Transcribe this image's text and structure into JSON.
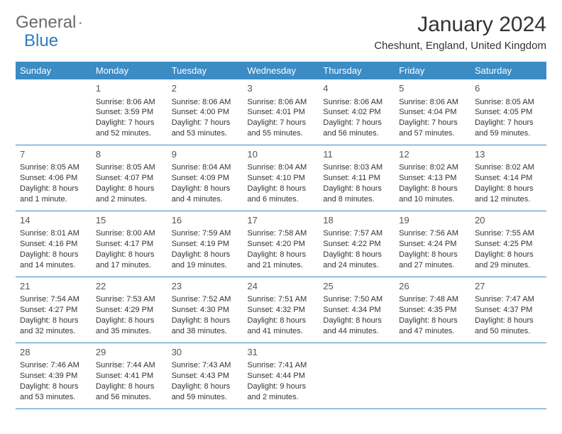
{
  "logo": {
    "general": "General",
    "blue": "Blue"
  },
  "title": "January 2024",
  "location": "Cheshunt, England, United Kingdom",
  "colors": {
    "header_bg": "#3b8bc5",
    "header_text": "#ffffff",
    "border": "#3b8bc5",
    "logo_gray": "#6a6a6a",
    "logo_blue": "#2f7bbf",
    "text": "#333333",
    "background": "#ffffff"
  },
  "day_headers": [
    "Sunday",
    "Monday",
    "Tuesday",
    "Wednesday",
    "Thursday",
    "Friday",
    "Saturday"
  ],
  "layout": {
    "first_day_column": 1,
    "fontsize_body": 11,
    "fontsize_header": 13,
    "fontsize_title": 30
  },
  "days": {
    "1": {
      "sunrise": "8:06 AM",
      "sunset": "3:59 PM",
      "daylight": "7 hours and 52 minutes."
    },
    "2": {
      "sunrise": "8:06 AM",
      "sunset": "4:00 PM",
      "daylight": "7 hours and 53 minutes."
    },
    "3": {
      "sunrise": "8:06 AM",
      "sunset": "4:01 PM",
      "daylight": "7 hours and 55 minutes."
    },
    "4": {
      "sunrise": "8:06 AM",
      "sunset": "4:02 PM",
      "daylight": "7 hours and 56 minutes."
    },
    "5": {
      "sunrise": "8:06 AM",
      "sunset": "4:04 PM",
      "daylight": "7 hours and 57 minutes."
    },
    "6": {
      "sunrise": "8:05 AM",
      "sunset": "4:05 PM",
      "daylight": "7 hours and 59 minutes."
    },
    "7": {
      "sunrise": "8:05 AM",
      "sunset": "4:06 PM",
      "daylight": "8 hours and 1 minute."
    },
    "8": {
      "sunrise": "8:05 AM",
      "sunset": "4:07 PM",
      "daylight": "8 hours and 2 minutes."
    },
    "9": {
      "sunrise": "8:04 AM",
      "sunset": "4:09 PM",
      "daylight": "8 hours and 4 minutes."
    },
    "10": {
      "sunrise": "8:04 AM",
      "sunset": "4:10 PM",
      "daylight": "8 hours and 6 minutes."
    },
    "11": {
      "sunrise": "8:03 AM",
      "sunset": "4:11 PM",
      "daylight": "8 hours and 8 minutes."
    },
    "12": {
      "sunrise": "8:02 AM",
      "sunset": "4:13 PM",
      "daylight": "8 hours and 10 minutes."
    },
    "13": {
      "sunrise": "8:02 AM",
      "sunset": "4:14 PM",
      "daylight": "8 hours and 12 minutes."
    },
    "14": {
      "sunrise": "8:01 AM",
      "sunset": "4:16 PM",
      "daylight": "8 hours and 14 minutes."
    },
    "15": {
      "sunrise": "8:00 AM",
      "sunset": "4:17 PM",
      "daylight": "8 hours and 17 minutes."
    },
    "16": {
      "sunrise": "7:59 AM",
      "sunset": "4:19 PM",
      "daylight": "8 hours and 19 minutes."
    },
    "17": {
      "sunrise": "7:58 AM",
      "sunset": "4:20 PM",
      "daylight": "8 hours and 21 minutes."
    },
    "18": {
      "sunrise": "7:57 AM",
      "sunset": "4:22 PM",
      "daylight": "8 hours and 24 minutes."
    },
    "19": {
      "sunrise": "7:56 AM",
      "sunset": "4:24 PM",
      "daylight": "8 hours and 27 minutes."
    },
    "20": {
      "sunrise": "7:55 AM",
      "sunset": "4:25 PM",
      "daylight": "8 hours and 29 minutes."
    },
    "21": {
      "sunrise": "7:54 AM",
      "sunset": "4:27 PM",
      "daylight": "8 hours and 32 minutes."
    },
    "22": {
      "sunrise": "7:53 AM",
      "sunset": "4:29 PM",
      "daylight": "8 hours and 35 minutes."
    },
    "23": {
      "sunrise": "7:52 AM",
      "sunset": "4:30 PM",
      "daylight": "8 hours and 38 minutes."
    },
    "24": {
      "sunrise": "7:51 AM",
      "sunset": "4:32 PM",
      "daylight": "8 hours and 41 minutes."
    },
    "25": {
      "sunrise": "7:50 AM",
      "sunset": "4:34 PM",
      "daylight": "8 hours and 44 minutes."
    },
    "26": {
      "sunrise": "7:48 AM",
      "sunset": "4:35 PM",
      "daylight": "8 hours and 47 minutes."
    },
    "27": {
      "sunrise": "7:47 AM",
      "sunset": "4:37 PM",
      "daylight": "8 hours and 50 minutes."
    },
    "28": {
      "sunrise": "7:46 AM",
      "sunset": "4:39 PM",
      "daylight": "8 hours and 53 minutes."
    },
    "29": {
      "sunrise": "7:44 AM",
      "sunset": "4:41 PM",
      "daylight": "8 hours and 56 minutes."
    },
    "30": {
      "sunrise": "7:43 AM",
      "sunset": "4:43 PM",
      "daylight": "8 hours and 59 minutes."
    },
    "31": {
      "sunrise": "7:41 AM",
      "sunset": "4:44 PM",
      "daylight": "9 hours and 2 minutes."
    }
  },
  "labels": {
    "sunrise": "Sunrise:",
    "sunset": "Sunset:",
    "daylight": "Daylight:"
  }
}
